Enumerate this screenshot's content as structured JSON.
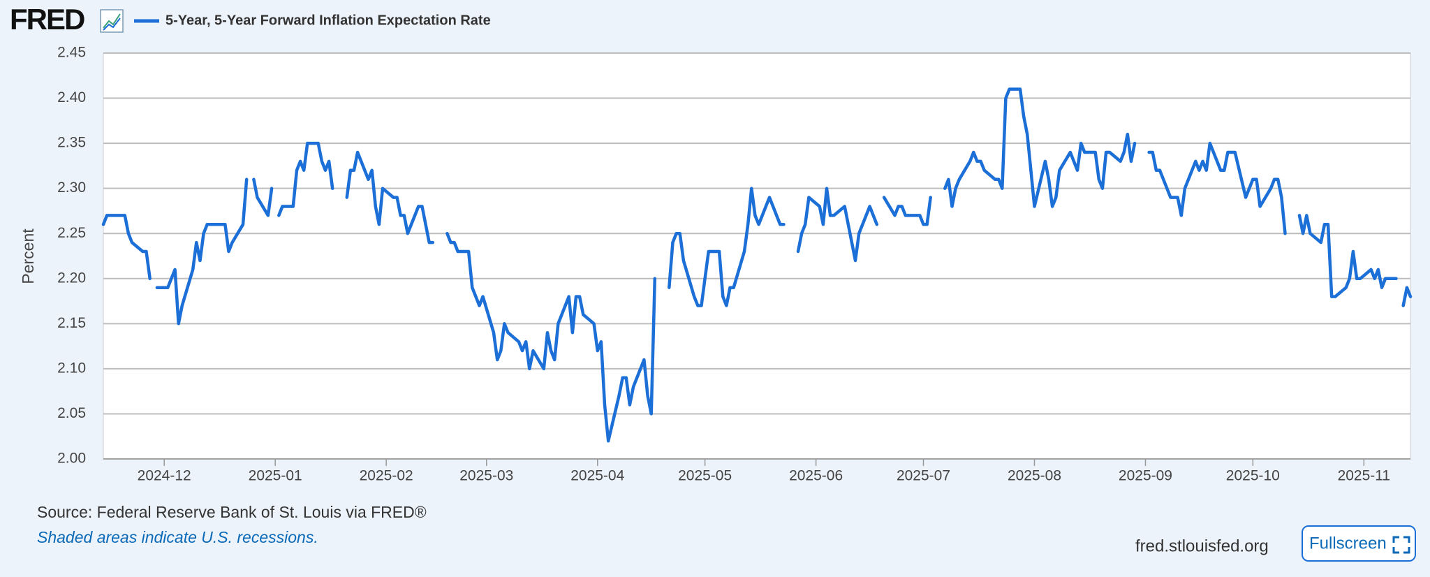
{
  "header": {
    "logo": "FRED"
  },
  "chart_data": {
    "type": "line",
    "y_label": "Percent",
    "xlim": [
      "2024-11-14",
      "2025-11-14"
    ],
    "xticks": [
      {
        "value": "2024-12-01",
        "label": "2024-12"
      },
      {
        "value": "2025-01-01",
        "label": "2025-01"
      },
      {
        "value": "2025-02-01",
        "label": "2025-02"
      },
      {
        "value": "2025-03-01",
        "label": "2025-03"
      },
      {
        "value": "2025-04-01",
        "label": "2025-04"
      },
      {
        "value": "2025-05-01",
        "label": "2025-05"
      },
      {
        "value": "2025-06-01",
        "label": "2025-06"
      },
      {
        "value": "2025-07-01",
        "label": "2025-07"
      },
      {
        "value": "2025-08-01",
        "label": "2025-08"
      },
      {
        "value": "2025-09-01",
        "label": "2025-09"
      },
      {
        "value": "2025-10-01",
        "label": "2025-10"
      },
      {
        "value": "2025-11-01",
        "label": "2025-11"
      }
    ],
    "ylim": [
      2.0,
      2.45
    ],
    "yticks": [
      {
        "value": 2.0,
        "label": "2.00"
      },
      {
        "value": 2.05,
        "label": "2.05"
      },
      {
        "value": 2.1,
        "label": "2.10"
      },
      {
        "value": 2.15,
        "label": "2.15"
      },
      {
        "value": 2.2,
        "label": "2.20"
      },
      {
        "value": 2.25,
        "label": "2.25"
      },
      {
        "value": 2.3,
        "label": "2.30"
      },
      {
        "value": 2.35,
        "label": "2.35"
      },
      {
        "value": 2.4,
        "label": "2.40"
      },
      {
        "value": 2.45,
        "label": "2.45"
      }
    ],
    "grid": true,
    "x": [
      "2024-11-14",
      "2024-11-15",
      "2024-11-18",
      "2024-11-19",
      "2024-11-20",
      "2024-11-21",
      "2024-11-22",
      "2024-11-25",
      "2024-11-26",
      "2024-11-27",
      "2024-11-28",
      "2024-11-29",
      "2024-12-02",
      "2024-12-03",
      "2024-12-04",
      "2024-12-05",
      "2024-12-06",
      "2024-12-09",
      "2024-12-10",
      "2024-12-11",
      "2024-12-12",
      "2024-12-13",
      "2024-12-16",
      "2024-12-17",
      "2024-12-18",
      "2024-12-19",
      "2024-12-20",
      "2024-12-23",
      "2024-12-24",
      "2024-12-25",
      "2024-12-26",
      "2024-12-27",
      "2024-12-30",
      "2024-12-31",
      "2025-01-01",
      "2025-01-02",
      "2025-01-03",
      "2025-01-06",
      "2025-01-07",
      "2025-01-08",
      "2025-01-09",
      "2025-01-10",
      "2025-01-13",
      "2025-01-14",
      "2025-01-15",
      "2025-01-16",
      "2025-01-17",
      "2025-01-20",
      "2025-01-21",
      "2025-01-22",
      "2025-01-23",
      "2025-01-24",
      "2025-01-27",
      "2025-01-28",
      "2025-01-29",
      "2025-01-30",
      "2025-01-31",
      "2025-02-03",
      "2025-02-04",
      "2025-02-05",
      "2025-02-06",
      "2025-02-07",
      "2025-02-10",
      "2025-02-11",
      "2025-02-12",
      "2025-02-13",
      "2025-02-14",
      "2025-02-17",
      "2025-02-18",
      "2025-02-19",
      "2025-02-20",
      "2025-02-21",
      "2025-02-24",
      "2025-02-25",
      "2025-02-26",
      "2025-02-27",
      "2025-02-28",
      "2025-03-03",
      "2025-03-04",
      "2025-03-05",
      "2025-03-06",
      "2025-03-07",
      "2025-03-10",
      "2025-03-11",
      "2025-03-12",
      "2025-03-13",
      "2025-03-14",
      "2025-03-17",
      "2025-03-18",
      "2025-03-19",
      "2025-03-20",
      "2025-03-21",
      "2025-03-24",
      "2025-03-25",
      "2025-03-26",
      "2025-03-27",
      "2025-03-28",
      "2025-03-31",
      "2025-04-01",
      "2025-04-02",
      "2025-04-03",
      "2025-04-04",
      "2025-04-07",
      "2025-04-08",
      "2025-04-09",
      "2025-04-10",
      "2025-04-11",
      "2025-04-14",
      "2025-04-15",
      "2025-04-16",
      "2025-04-17",
      "2025-04-18",
      "2025-04-21",
      "2025-04-22",
      "2025-04-23",
      "2025-04-24",
      "2025-04-25",
      "2025-04-28",
      "2025-04-29",
      "2025-04-30",
      "2025-05-01",
      "2025-05-02",
      "2025-05-05",
      "2025-05-06",
      "2025-05-07",
      "2025-05-08",
      "2025-05-09",
      "2025-05-12",
      "2025-05-13",
      "2025-05-14",
      "2025-05-15",
      "2025-05-16",
      "2025-05-19",
      "2025-05-20",
      "2025-05-21",
      "2025-05-22",
      "2025-05-23",
      "2025-05-26",
      "2025-05-27",
      "2025-05-28",
      "2025-05-29",
      "2025-05-30",
      "2025-06-02",
      "2025-06-03",
      "2025-06-04",
      "2025-06-05",
      "2025-06-06",
      "2025-06-09",
      "2025-06-10",
      "2025-06-11",
      "2025-06-12",
      "2025-06-13",
      "2025-06-16",
      "2025-06-17",
      "2025-06-18",
      "2025-06-19",
      "2025-06-20",
      "2025-06-23",
      "2025-06-24",
      "2025-06-25",
      "2025-06-26",
      "2025-06-27",
      "2025-06-30",
      "2025-07-01",
      "2025-07-02",
      "2025-07-03",
      "2025-07-04",
      "2025-07-07",
      "2025-07-08",
      "2025-07-09",
      "2025-07-10",
      "2025-07-11",
      "2025-07-14",
      "2025-07-15",
      "2025-07-16",
      "2025-07-17",
      "2025-07-18",
      "2025-07-21",
      "2025-07-22",
      "2025-07-23",
      "2025-07-24",
      "2025-07-25",
      "2025-07-28",
      "2025-07-29",
      "2025-07-30",
      "2025-07-31",
      "2025-08-01",
      "2025-08-04",
      "2025-08-05",
      "2025-08-06",
      "2025-08-07",
      "2025-08-08",
      "2025-08-11",
      "2025-08-12",
      "2025-08-13",
      "2025-08-14",
      "2025-08-15",
      "2025-08-18",
      "2025-08-19",
      "2025-08-20",
      "2025-08-21",
      "2025-08-22",
      "2025-08-25",
      "2025-08-26",
      "2025-08-27",
      "2025-08-28",
      "2025-08-29",
      "2025-09-01",
      "2025-09-02",
      "2025-09-03",
      "2025-09-04",
      "2025-09-05",
      "2025-09-08",
      "2025-09-09",
      "2025-09-10",
      "2025-09-11",
      "2025-09-12",
      "2025-09-15",
      "2025-09-16",
      "2025-09-17",
      "2025-09-18",
      "2025-09-19",
      "2025-09-22",
      "2025-09-23",
      "2025-09-24",
      "2025-09-25",
      "2025-09-26",
      "2025-09-29",
      "2025-09-30",
      "2025-10-01",
      "2025-10-02",
      "2025-10-03",
      "2025-10-06",
      "2025-10-07",
      "2025-10-08",
      "2025-10-09",
      "2025-10-10",
      "2025-10-13",
      "2025-10-14",
      "2025-10-15",
      "2025-10-16",
      "2025-10-17",
      "2025-10-20",
      "2025-10-21",
      "2025-10-22",
      "2025-10-23",
      "2025-10-24",
      "2025-10-27",
      "2025-10-28",
      "2025-10-29",
      "2025-10-30",
      "2025-10-31",
      "2025-11-03",
      "2025-11-04",
      "2025-11-05",
      "2025-11-06",
      "2025-11-07",
      "2025-11-10",
      "2025-11-11",
      "2025-11-12",
      "2025-11-13",
      "2025-11-14"
    ],
    "series": [
      {
        "name": "5-Year, 5-Year Forward Inflation Expectation Rate",
        "color": "#1c6fd6",
        "values": [
          2.26,
          2.27,
          2.27,
          2.27,
          2.27,
          2.25,
          2.24,
          2.23,
          2.23,
          2.2,
          null,
          2.19,
          2.19,
          2.2,
          2.21,
          2.15,
          2.17,
          2.21,
          2.24,
          2.22,
          2.25,
          2.26,
          2.26,
          2.26,
          2.26,
          2.23,
          2.24,
          2.26,
          2.31,
          null,
          2.31,
          2.29,
          2.27,
          2.3,
          null,
          2.27,
          2.28,
          2.28,
          2.32,
          2.33,
          2.32,
          2.35,
          2.35,
          2.33,
          2.32,
          2.33,
          2.3,
          null,
          2.29,
          2.32,
          2.32,
          2.34,
          2.31,
          2.32,
          2.28,
          2.26,
          2.3,
          2.29,
          2.29,
          2.27,
          2.27,
          2.25,
          2.28,
          2.28,
          2.26,
          2.24,
          2.24,
          null,
          2.25,
          2.24,
          2.24,
          2.23,
          2.23,
          2.19,
          2.18,
          2.17,
          2.18,
          2.14,
          2.11,
          2.12,
          2.15,
          2.14,
          2.13,
          2.12,
          2.13,
          2.1,
          2.12,
          2.1,
          2.14,
          2.12,
          2.11,
          2.15,
          2.18,
          2.14,
          2.18,
          2.18,
          2.16,
          2.15,
          2.12,
          2.13,
          2.06,
          2.02,
          2.07,
          2.09,
          2.09,
          2.06,
          2.08,
          2.11,
          2.07,
          2.05,
          2.2,
          null,
          2.19,
          2.24,
          2.25,
          2.25,
          2.22,
          2.18,
          2.17,
          2.17,
          2.2,
          2.23,
          2.23,
          2.18,
          2.17,
          2.19,
          2.19,
          2.23,
          2.26,
          2.3,
          2.27,
          2.26,
          2.29,
          2.28,
          2.27,
          2.26,
          2.26,
          null,
          2.23,
          2.25,
          2.26,
          2.29,
          2.28,
          2.26,
          2.3,
          2.27,
          2.27,
          2.28,
          2.26,
          2.24,
          2.22,
          2.25,
          2.28,
          2.27,
          2.26,
          null,
          2.29,
          2.27,
          2.28,
          2.28,
          2.27,
          2.27,
          2.27,
          2.26,
          2.26,
          2.29,
          null,
          2.3,
          2.31,
          2.28,
          2.3,
          2.31,
          2.33,
          2.34,
          2.33,
          2.33,
          2.32,
          2.31,
          2.31,
          2.3,
          2.4,
          2.41,
          2.41,
          2.38,
          2.36,
          2.32,
          2.28,
          2.33,
          2.31,
          2.28,
          2.29,
          2.32,
          2.34,
          2.33,
          2.32,
          2.35,
          2.34,
          2.34,
          2.31,
          2.3,
          2.34,
          2.34,
          2.33,
          2.34,
          2.36,
          2.33,
          2.35,
          null,
          2.34,
          2.34,
          2.32,
          2.32,
          2.29,
          2.29,
          2.29,
          2.27,
          2.3,
          2.33,
          2.32,
          2.33,
          2.32,
          2.35,
          2.32,
          2.32,
          2.34,
          2.34,
          2.34,
          2.29,
          2.3,
          2.31,
          2.31,
          2.28,
          2.3,
          2.31,
          2.31,
          2.29,
          2.25,
          null,
          2.27,
          2.25,
          2.27,
          2.25,
          2.24,
          2.26,
          2.26,
          2.18,
          2.18,
          2.19,
          2.2,
          2.23,
          2.2,
          2.2,
          2.21,
          2.2,
          2.21,
          2.19,
          2.2,
          2.2,
          null,
          2.17,
          2.19,
          2.18
        ]
      }
    ],
    "source": "Source: Federal Reserve Bank of St. Louis via FRED®",
    "note": "Shaded areas indicate U.S. recessions."
  },
  "footer": {
    "site": "fred.stlouisfed.org",
    "fullscreen_button": "Fullscreen"
  }
}
